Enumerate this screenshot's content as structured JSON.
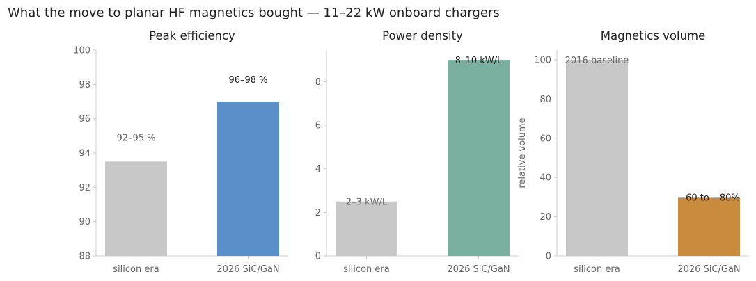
{
  "figure": {
    "title": "What the move to planar HF magnetics bought — 11–22 kW onboard chargers"
  },
  "chart_data": [
    {
      "type": "bar",
      "title": "Peak efficiency",
      "categories": [
        "silicon era",
        "2026 SiC/GaN"
      ],
      "values": [
        93.5,
        97
      ],
      "data_labels": [
        "92–95 %",
        "96–98 %"
      ],
      "colors": [
        "#c8c8c8",
        "#5b8fc9"
      ],
      "label_colors": [
        "#666666",
        "#222222"
      ],
      "ylabel": "",
      "ylim": [
        88,
        100
      ],
      "yticks": [
        88,
        90,
        92,
        94,
        96,
        98,
        100
      ],
      "grid": false
    },
    {
      "type": "bar",
      "title": "Power density",
      "categories": [
        "silicon era",
        "2026 SiC/GaN"
      ],
      "values": [
        2.5,
        9
      ],
      "data_labels": [
        "2–3 kW/L",
        "8–10 kW/L"
      ],
      "colors": [
        "#c8c8c8",
        "#7ab0a0"
      ],
      "label_colors": [
        "#666666",
        "#222222"
      ],
      "ylabel": "",
      "ylim": [
        0,
        9.45
      ],
      "yticks": [
        0,
        2,
        4,
        6,
        8
      ],
      "grid": false
    },
    {
      "type": "bar",
      "title": "Magnetics volume",
      "categories": [
        "silicon era",
        "2026 SiC/GaN"
      ],
      "values": [
        100,
        30
      ],
      "data_labels": [
        "2016 baseline",
        "−60 to −80%"
      ],
      "colors": [
        "#c8c8c8",
        "#c98b3e"
      ],
      "label_colors": [
        "#666666",
        "#222222"
      ],
      "ylabel": "relative volume",
      "ylim": [
        0,
        105
      ],
      "yticks": [
        0,
        20,
        40,
        60,
        80,
        100
      ],
      "grid": false
    }
  ]
}
